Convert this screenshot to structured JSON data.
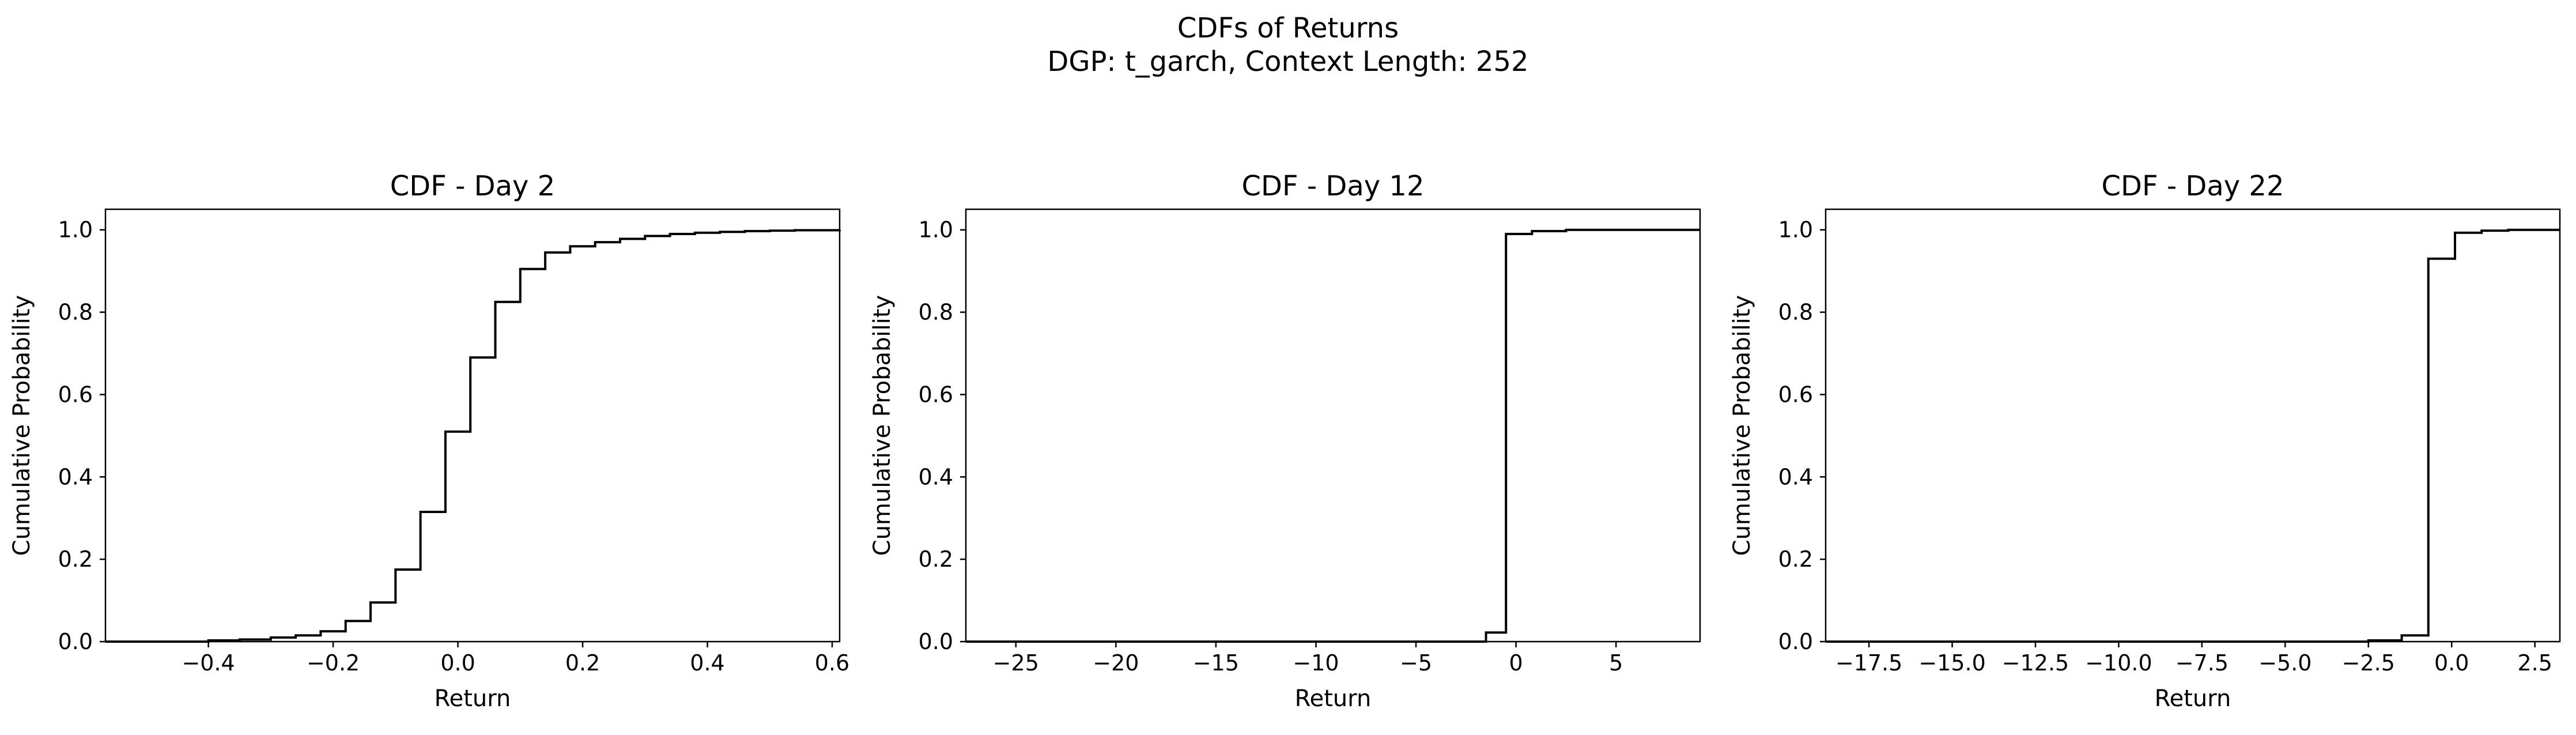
{
  "figure": {
    "title_line1": "CDFs of Returns",
    "title_line2": "DGP: t_garch, Context Length: 252"
  },
  "chart_data": [
    {
      "type": "line",
      "step": true,
      "title": "CDF - Day 2",
      "xlabel": "Return",
      "ylabel": "Cumulative Probability",
      "xlim": [
        -0.565,
        0.612
      ],
      "ylim": [
        0.0,
        1.05
      ],
      "xticks": [
        -0.4,
        -0.2,
        0.0,
        0.2,
        0.4,
        0.6
      ],
      "xtick_labels": [
        "−0.4",
        "−0.2",
        "0.0",
        "0.2",
        "0.4",
        "0.6"
      ],
      "yticks": [
        0.0,
        0.2,
        0.4,
        0.6,
        0.8,
        1.0
      ],
      "ytick_labels": [
        "0.0",
        "0.2",
        "0.4",
        "0.6",
        "0.8",
        "1.0"
      ],
      "grid": false,
      "series": [
        {
          "x": [
            -0.565,
            -0.4,
            -0.35,
            -0.3,
            -0.26,
            -0.22,
            -0.18,
            -0.14,
            -0.1,
            -0.06,
            -0.02,
            0.02,
            0.06,
            0.1,
            0.14,
            0.18,
            0.22,
            0.26,
            0.3,
            0.34,
            0.38,
            0.42,
            0.46,
            0.5,
            0.54,
            0.612
          ],
          "y": [
            0.0,
            0.003,
            0.005,
            0.01,
            0.015,
            0.025,
            0.05,
            0.095,
            0.175,
            0.315,
            0.51,
            0.69,
            0.825,
            0.905,
            0.945,
            0.96,
            0.97,
            0.978,
            0.985,
            0.99,
            0.993,
            0.995,
            0.997,
            0.998,
            0.999,
            1.0
          ]
        }
      ]
    },
    {
      "type": "line",
      "step": true,
      "title": "CDF - Day 12",
      "xlabel": "Return",
      "ylabel": "Cumulative Probability",
      "xlim": [
        -27.5,
        9.2
      ],
      "ylim": [
        0.0,
        1.05
      ],
      "xticks": [
        -25,
        -20,
        -15,
        -10,
        -5,
        0,
        5
      ],
      "xtick_labels": [
        "−25",
        "−20",
        "−15",
        "−10",
        "−5",
        "0",
        "5"
      ],
      "yticks": [
        0.0,
        0.2,
        0.4,
        0.6,
        0.8,
        1.0
      ],
      "ytick_labels": [
        "0.0",
        "0.2",
        "0.4",
        "0.6",
        "0.8",
        "1.0"
      ],
      "grid": false,
      "series": [
        {
          "x": [
            -27.5,
            -1.5,
            -0.5,
            0.8,
            2.5,
            9.2
          ],
          "y": [
            0.0,
            0.022,
            0.99,
            0.997,
            1.0,
            1.0
          ]
        }
      ]
    },
    {
      "type": "line",
      "step": true,
      "title": "CDF - Day 22",
      "xlabel": "Return",
      "ylabel": "Cumulative Probability",
      "xlim": [
        -18.8,
        3.25
      ],
      "ylim": [
        0.0,
        1.05
      ],
      "xticks": [
        -17.5,
        -15.0,
        -12.5,
        -10.0,
        -7.5,
        -5.0,
        -2.5,
        0.0,
        2.5
      ],
      "xtick_labels": [
        "−17.5",
        "−15.0",
        "−12.5",
        "−10.0",
        "−7.5",
        "−5.0",
        "−2.5",
        "0.0",
        "2.5"
      ],
      "yticks": [
        0.0,
        0.2,
        0.4,
        0.6,
        0.8,
        1.0
      ],
      "ytick_labels": [
        "0.0",
        "0.2",
        "0.4",
        "0.6",
        "0.8",
        "1.0"
      ],
      "grid": false,
      "series": [
        {
          "x": [
            -18.8,
            -2.5,
            -1.5,
            -0.7,
            0.1,
            0.9,
            1.7,
            3.25
          ],
          "y": [
            0.0,
            0.003,
            0.015,
            0.93,
            0.993,
            0.998,
            1.0,
            1.0
          ]
        }
      ]
    }
  ]
}
